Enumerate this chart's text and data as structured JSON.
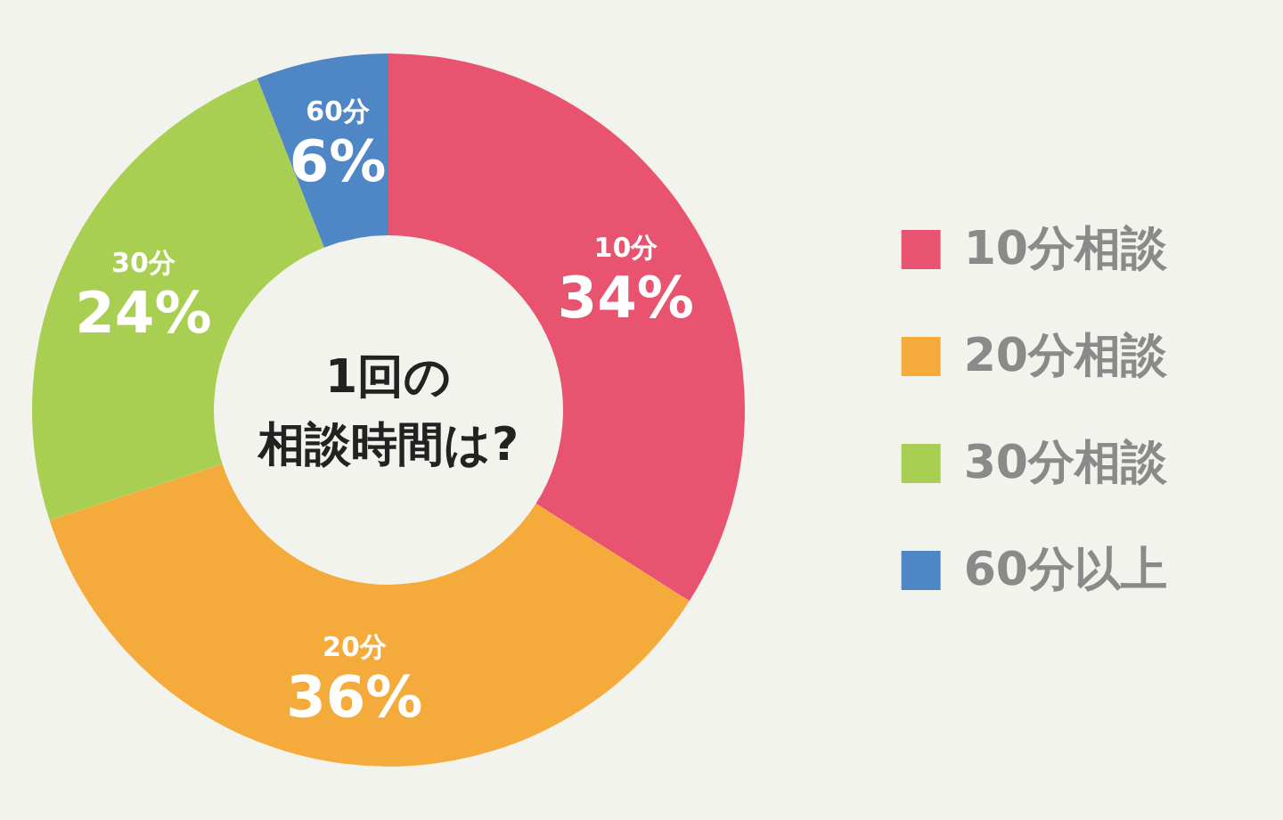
{
  "chart_data": {
    "type": "donut",
    "title": "1回の",
    "subtitle": "相談時間は?",
    "categories": [
      "10分相談",
      "20分相談",
      "30分相談",
      "60分以上"
    ],
    "values": [
      34,
      36,
      24,
      6
    ],
    "colors": [
      "#e8546f",
      "#f5ab3c",
      "#a8cf52",
      "#4f86c6"
    ],
    "value_labels": [
      "10分\n34%",
      "20分\n36%",
      "30分\n24%",
      "60分\n6%"
    ],
    "legend": "right"
  }
}
